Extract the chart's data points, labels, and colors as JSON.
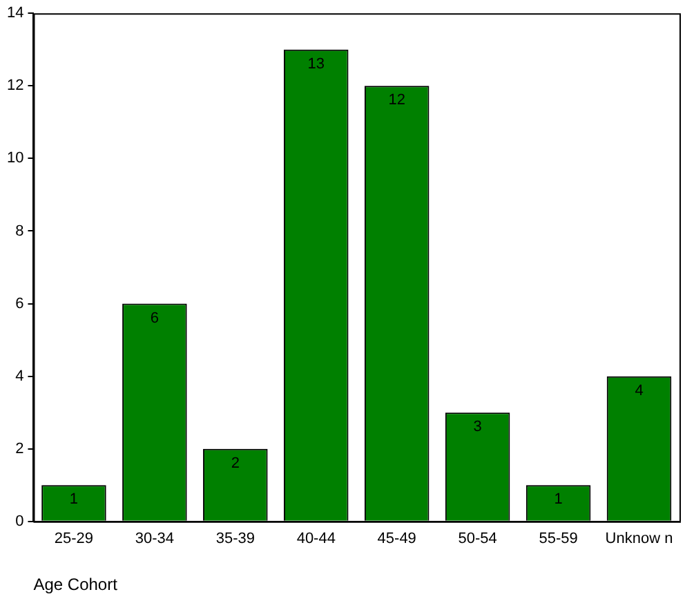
{
  "chart_data": {
    "type": "bar",
    "xlabel": "Age Cohort",
    "categories": [
      "25-29",
      "30-34",
      "35-39",
      "40-44",
      "45-49",
      "50-54",
      "55-59",
      "Unknow n"
    ],
    "values": [
      1,
      6,
      2,
      13,
      12,
      3,
      1,
      4
    ],
    "color": "#008000",
    "ylim": [
      0,
      14
    ],
    "yticks": [
      0,
      2,
      4,
      6,
      8,
      10,
      12,
      14
    ],
    "grid": false,
    "data_labels": true
  }
}
